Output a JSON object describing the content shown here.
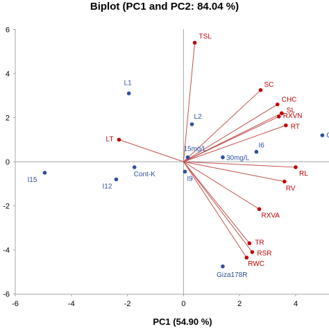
{
  "chart_data": {
    "type": "scatter",
    "title": "Biplot (PC1 and PC2: 84.04 %)",
    "xlabel": "PC1 (54.90 %)",
    "ylabel": "",
    "xlim": [
      -6,
      6
    ],
    "ylim": [
      -6,
      6
    ],
    "x_ticks": [
      "-6",
      "-4",
      "-2",
      "0",
      "2",
      "4"
    ],
    "y_ticks": [
      "6",
      "4",
      "2",
      "0",
      "-2",
      "-4",
      "-6"
    ],
    "grid": false,
    "legend": "none",
    "colors": {
      "observations": "#2e4f9e",
      "variables": "#c00000",
      "vectors": "#c0504d",
      "zero_lines": "#a6a6a6"
    },
    "series": [
      {
        "role": "observations",
        "points": [
          {
            "label": "L1",
            "x": -1.95,
            "y": 3.1
          },
          {
            "label": "L2",
            "x": 0.3,
            "y": 1.7
          },
          {
            "label": "15mg/L",
            "x": 0.15,
            "y": 0.2
          },
          {
            "label": "30mg/L",
            "x": 1.4,
            "y": 0.2
          },
          {
            "label": "I6",
            "x": 2.6,
            "y": 0.45
          },
          {
            "label": "CF",
            "x": 4.95,
            "y": 1.2
          },
          {
            "label": "Cont-K",
            "x": -1.75,
            "y": -0.25
          },
          {
            "label": "I9",
            "x": 0.05,
            "y": -0.45
          },
          {
            "label": "I12",
            "x": -2.4,
            "y": -0.8
          },
          {
            "label": "I15",
            "x": -4.95,
            "y": -0.5
          },
          {
            "label": "Giza178R",
            "x": 1.4,
            "y": -4.75
          }
        ]
      },
      {
        "role": "variables",
        "points": [
          {
            "label": "TSL",
            "x": 0.4,
            "y": 5.4
          },
          {
            "label": "SC",
            "x": 2.75,
            "y": 3.25
          },
          {
            "label": "CHC",
            "x": 3.35,
            "y": 2.6
          },
          {
            "label": "SL",
            "x": 3.5,
            "y": 2.2
          },
          {
            "label": "RXVN",
            "x": 3.4,
            "y": 2.05
          },
          {
            "label": "RT",
            "x": 3.65,
            "y": 1.65
          },
          {
            "label": "LT",
            "x": -2.3,
            "y": 1.0
          },
          {
            "label": "RL",
            "x": 4.0,
            "y": -0.25
          },
          {
            "label": "RV",
            "x": 3.6,
            "y": -0.9
          },
          {
            "label": "RXVA",
            "x": 2.7,
            "y": -2.15
          },
          {
            "label": "TR",
            "x": 2.35,
            "y": -3.7
          },
          {
            "label": "RSR",
            "x": 2.45,
            "y": -4.1
          },
          {
            "label": "RWC",
            "x": 2.25,
            "y": -4.35
          }
        ]
      }
    ]
  }
}
